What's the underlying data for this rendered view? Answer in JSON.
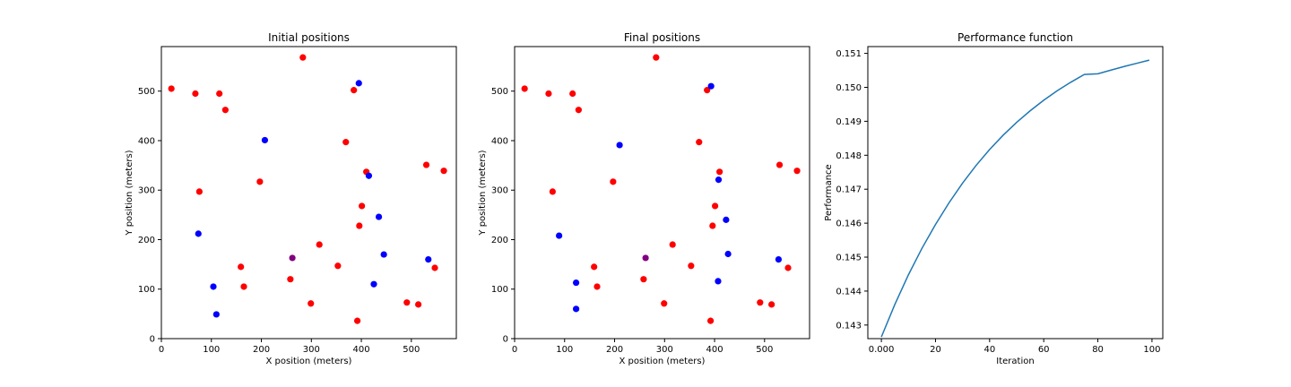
{
  "chart_data": [
    {
      "type": "scatter",
      "title": "Initial positions",
      "xlabel": "X position (meters)",
      "ylabel": "Y position (meters)",
      "xlim": [
        0,
        590
      ],
      "ylim": [
        0,
        590
      ],
      "xticks": [
        0,
        100,
        200,
        300,
        400,
        500
      ],
      "yticks": [
        0,
        100,
        200,
        300,
        400,
        500
      ],
      "grid": false,
      "series": [
        {
          "color": "#ff0000",
          "points": [
            [
              20,
              505
            ],
            [
              68,
              495
            ],
            [
              116,
              495
            ],
            [
              128,
              462
            ],
            [
              283,
              568
            ],
            [
              385,
              502
            ],
            [
              369,
              397
            ],
            [
              530,
              351
            ],
            [
              565,
              339
            ],
            [
              410,
              337
            ],
            [
              76,
              297
            ],
            [
              197,
              317
            ],
            [
              401,
              268
            ],
            [
              396,
              228
            ],
            [
              316,
              190
            ],
            [
              159,
              145
            ],
            [
              353,
              147
            ],
            [
              547,
              143
            ],
            [
              258,
              120
            ],
            [
              165,
              105
            ],
            [
              299,
              71
            ],
            [
              491,
              73
            ],
            [
              514,
              69
            ],
            [
              392,
              36
            ]
          ]
        },
        {
          "color": "#0000ff",
          "points": [
            [
              395,
              516
            ],
            [
              207,
              401
            ],
            [
              415,
              329
            ],
            [
              435,
              246
            ],
            [
              74,
              212
            ],
            [
              445,
              170
            ],
            [
              534,
              160
            ],
            [
              425,
              110
            ],
            [
              104,
              105
            ],
            [
              110,
              49
            ]
          ]
        },
        {
          "color": "#800080",
          "points": [
            [
              262,
              163
            ]
          ]
        }
      ]
    },
    {
      "type": "scatter",
      "title": "Final positions",
      "xlabel": "X position (meters)",
      "ylabel": "Y position (meters)",
      "xlim": [
        0,
        590
      ],
      "ylim": [
        0,
        590
      ],
      "xticks": [
        0,
        100,
        200,
        300,
        400,
        500
      ],
      "yticks": [
        0,
        100,
        200,
        300,
        400,
        500
      ],
      "grid": false,
      "series": [
        {
          "color": "#ff0000",
          "points": [
            [
              20,
              505
            ],
            [
              68,
              495
            ],
            [
              116,
              495
            ],
            [
              128,
              462
            ],
            [
              283,
              568
            ],
            [
              385,
              502
            ],
            [
              369,
              397
            ],
            [
              530,
              351
            ],
            [
              565,
              339
            ],
            [
              410,
              337
            ],
            [
              76,
              297
            ],
            [
              197,
              317
            ],
            [
              401,
              268
            ],
            [
              396,
              228
            ],
            [
              316,
              190
            ],
            [
              159,
              145
            ],
            [
              353,
              147
            ],
            [
              547,
              143
            ],
            [
              258,
              120
            ],
            [
              165,
              105
            ],
            [
              299,
              71
            ],
            [
              491,
              73
            ],
            [
              514,
              69
            ],
            [
              392,
              36
            ]
          ]
        },
        {
          "color": "#0000ff",
          "points": [
            [
              393,
              510
            ],
            [
              210,
              391
            ],
            [
              408,
              321
            ],
            [
              423,
              240
            ],
            [
              89,
              208
            ],
            [
              427,
              171
            ],
            [
              528,
              160
            ],
            [
              407,
              116
            ],
            [
              123,
              113
            ],
            [
              123,
              60
            ]
          ]
        },
        {
          "color": "#800080",
          "points": [
            [
              262,
              163
            ]
          ]
        }
      ]
    },
    {
      "type": "line",
      "title": "Performance function",
      "xlabel": "Iteration",
      "ylabel": "Performance",
      "xlim": [
        -5,
        104
      ],
      "ylim": [
        0.1426,
        0.1512
      ],
      "xticks": [
        0,
        20,
        40,
        60,
        80,
        100
      ],
      "yticks": [
        0.143,
        0.144,
        0.145,
        0.146,
        0.147,
        0.148,
        0.149,
        0.15,
        0.151
      ],
      "grid": false,
      "series": [
        {
          "color": "#1f77b4",
          "x": [
            0,
            5,
            10,
            15,
            20,
            25,
            30,
            35,
            40,
            45,
            50,
            55,
            60,
            65,
            70,
            75,
            80,
            85,
            90,
            95,
            99
          ],
          "y": [
            0.14265,
            0.14361,
            0.14448,
            0.14526,
            0.14596,
            0.1466,
            0.14718,
            0.1477,
            0.14817,
            0.14859,
            0.14897,
            0.14931,
            0.14962,
            0.1499,
            0.15015,
            0.15038,
            0.1504,
            0.15051,
            0.15062,
            0.15072,
            0.1508
          ]
        }
      ]
    }
  ]
}
